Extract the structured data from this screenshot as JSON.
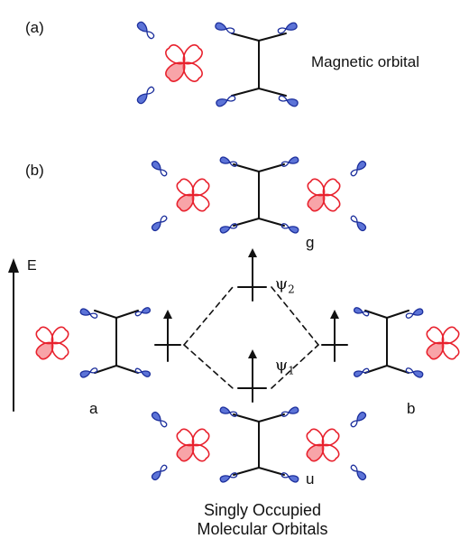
{
  "labels": {
    "part_a": "(a)",
    "part_b": "(b)",
    "magnetic_orbital": "Magnetic orbital",
    "energy_axis": "E",
    "fragment_a": "a",
    "fragment_b": "b",
    "level_g": "g",
    "level_u": "u",
    "psi2_symbol": "ψ",
    "psi2_sub": "2",
    "psi1_symbol": "ψ",
    "psi1_sub": "1",
    "caption_line1": "Singly Occupied",
    "caption_line2": "Molecular Orbitals"
  },
  "colors": {
    "metal_orbital": "#e8222e",
    "metal_orbital_fill": "#f25a60",
    "ligand_orbital": "#1c2f9c",
    "ligand_orbital_fill": "#3f5bd0",
    "bond": "#111111"
  },
  "icons": {
    "metal_orbital": "d-orbital-four-lobe",
    "ligand_orbital": "p-orbital-lobe",
    "electron": "up-arrow-spin"
  }
}
